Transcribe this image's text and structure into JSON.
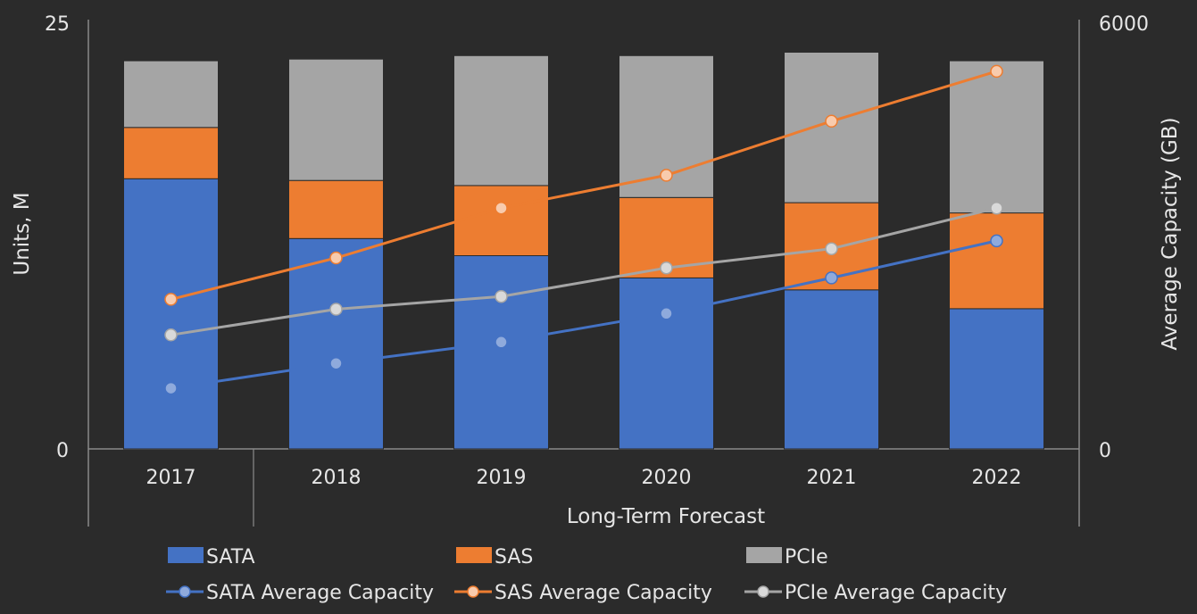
{
  "chart_data": {
    "type": "bar",
    "stacked": true,
    "categories": [
      "2017",
      "2018",
      "2019",
      "2020",
      "2021",
      "2022"
    ],
    "xlabel_group": "Long-Term Forecast",
    "ylabel": "Units, M",
    "y2label": "Average Capacity (GB)",
    "ylim": [
      0,
      25
    ],
    "y2lim": [
      0,
      6000
    ],
    "y_ticks": [
      "0",
      "25"
    ],
    "y2_ticks": [
      "0",
      "6000"
    ],
    "series": [
      {
        "name": "SATA",
        "axis": "left",
        "color": "#4472c4",
        "values": [
          15.8,
          12.3,
          11.3,
          10.0,
          9.3,
          8.2
        ]
      },
      {
        "name": "SAS",
        "axis": "left",
        "color": "#ed7d31",
        "values": [
          3.0,
          3.4,
          4.1,
          4.7,
          5.1,
          5.6
        ]
      },
      {
        "name": "PCIe",
        "axis": "left",
        "color": "#a5a5a5",
        "values": [
          3.9,
          7.1,
          7.6,
          8.3,
          8.8,
          8.9
        ]
      }
    ],
    "line_series": [
      {
        "name": "SATA Average Capacity",
        "axis": "right",
        "color": "#4472c4",
        "values": [
          850,
          1200,
          1500,
          1900,
          2400,
          2920
        ]
      },
      {
        "name": "SAS Average Capacity",
        "axis": "right",
        "color": "#ed7d31",
        "values": [
          2100,
          2680,
          3380,
          3840,
          4600,
          5300
        ]
      },
      {
        "name": "PCIe Average Capacity",
        "axis": "right",
        "color": "#a5a5a5",
        "values": [
          1600,
          1960,
          2140,
          2540,
          2810,
          3380
        ]
      }
    ],
    "legend": {
      "position": "bottom",
      "bar_items": [
        "SATA",
        "SAS",
        "PCIe"
      ],
      "line_items": [
        "SATA Average Capacity",
        "SAS Average Capacity",
        "PCIe Average Capacity"
      ]
    },
    "grid": false,
    "colors": {
      "background": "#2b2b2b",
      "text": "#e6e6e6",
      "axis": "#8a8a8a"
    }
  }
}
